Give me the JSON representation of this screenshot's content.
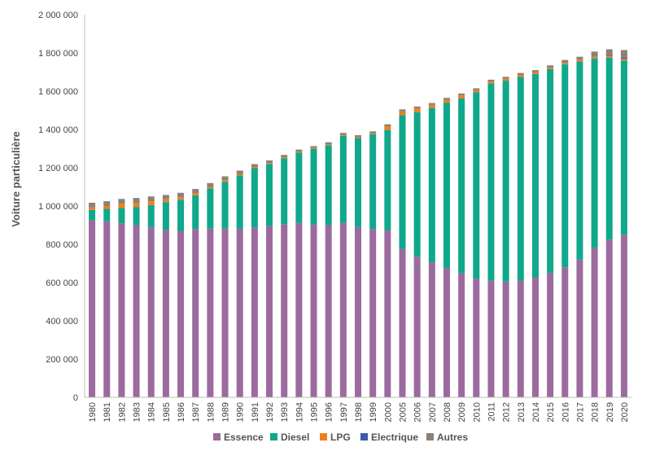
{
  "chart_data": {
    "type": "bar",
    "stacked": true,
    "ylabel": "Voiture particulière",
    "ylim": [
      0,
      2000000
    ],
    "yticks": [
      0,
      200000,
      400000,
      600000,
      800000,
      1000000,
      1200000,
      1400000,
      1600000,
      1800000,
      2000000
    ],
    "ytick_labels": [
      "0",
      "200 000",
      "400 000",
      "600 000",
      "800 000",
      "1 000 000",
      "1 200 000",
      "1 400 000",
      "1 600 000",
      "1 800 000",
      "2 000 000"
    ],
    "legend_position": "bottom",
    "grid": false,
    "categories": [
      "1980",
      "1981",
      "1982",
      "1983",
      "1984",
      "1985",
      "1986",
      "1987",
      "1988",
      "1989",
      "1990",
      "1991",
      "1992",
      "1993",
      "1994",
      "1995",
      "1996",
      "1997",
      "1998",
      "1999",
      "2000",
      "2005",
      "2006",
      "2007",
      "2008",
      "2009",
      "2010",
      "2011",
      "2012",
      "2013",
      "2014",
      "2015",
      "2016",
      "2017",
      "2018",
      "2019",
      "2020"
    ],
    "series": [
      {
        "name": "Essence",
        "color": "#9b6b9e",
        "values": [
          925000,
          920000,
          910000,
          900000,
          890000,
          875000,
          868000,
          880000,
          882000,
          882000,
          882000,
          888000,
          895000,
          905000,
          912000,
          903000,
          900000,
          912000,
          890000,
          880000,
          872000,
          775000,
          735000,
          705000,
          675000,
          648000,
          620000,
          610000,
          605000,
          610000,
          625000,
          650000,
          680000,
          720000,
          780000,
          825000,
          850000
        ]
      },
      {
        "name": "Diesel",
        "color": "#0fa88a",
        "values": [
          55000,
          65000,
          80000,
          95000,
          115000,
          145000,
          165000,
          175000,
          210000,
          245000,
          278000,
          310000,
          325000,
          345000,
          368000,
          395000,
          418000,
          455000,
          465000,
          495000,
          525000,
          700000,
          755000,
          808000,
          865000,
          915000,
          975000,
          1030000,
          1050000,
          1065000,
          1065000,
          1065000,
          1060000,
          1035000,
          990000,
          950000,
          910000
        ]
      },
      {
        "name": "LPG",
        "color": "#ee7f1e",
        "values": [
          12000,
          15000,
          22000,
          22000,
          20000,
          15000,
          13000,
          12000,
          8000,
          8000,
          8000,
          6000,
          5000,
          5000,
          5000,
          5000,
          5000,
          5000,
          5000,
          5000,
          20000,
          20000,
          20000,
          15000,
          15000,
          15000,
          10000,
          10000,
          10000,
          10000,
          10000,
          8000,
          8000,
          10000,
          10000,
          10000,
          10000
        ]
      },
      {
        "name": "Electrique",
        "color": "#3c5ba9",
        "values": [
          0,
          0,
          0,
          0,
          0,
          0,
          0,
          0,
          0,
          0,
          0,
          0,
          0,
          0,
          0,
          0,
          0,
          0,
          0,
          0,
          0,
          0,
          0,
          0,
          0,
          0,
          0,
          0,
          0,
          0,
          0,
          0,
          0,
          0,
          2000,
          4000,
          5000
        ]
      },
      {
        "name": "Autres",
        "color": "#8b8178",
        "values": [
          25000,
          25000,
          25000,
          25000,
          25000,
          23000,
          23000,
          22000,
          20000,
          20000,
          17000,
          15000,
          13000,
          12000,
          10000,
          10000,
          10000,
          10000,
          10000,
          10000,
          10000,
          10000,
          10000,
          10000,
          10000,
          10000,
          10000,
          10000,
          10000,
          10000,
          10000,
          12000,
          15000,
          15000,
          25000,
          30000,
          40000
        ]
      }
    ]
  }
}
